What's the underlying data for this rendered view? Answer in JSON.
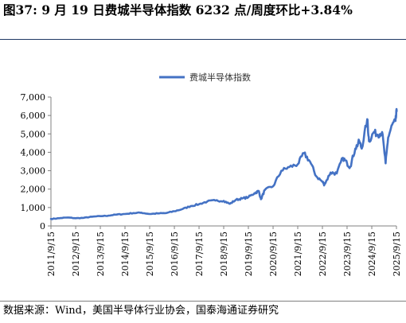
{
  "figure": {
    "title": "图37:  9 月 19 日费城半导体指数 6232 点/周度环比+3.84%",
    "source": "数据来源：Wind，美国半导体行业协会，国泰海通证券研究"
  },
  "colors": {
    "line": "#4472c4",
    "rule": "#1f3864",
    "axis": "#808080"
  },
  "chart_data": {
    "type": "line",
    "series": [
      {
        "name": "费城半导体指数",
        "x": [
          "2011/9/15",
          "2012/1/15",
          "2012/5/15",
          "2012/9/15",
          "2013/1/15",
          "2013/5/15",
          "2013/9/15",
          "2014/1/15",
          "2014/5/15",
          "2014/9/15",
          "2015/1/15",
          "2015/5/15",
          "2015/9/15",
          "2016/1/15",
          "2016/5/15",
          "2016/9/15",
          "2017/1/15",
          "2017/5/15",
          "2017/9/15",
          "2018/1/15",
          "2018/5/15",
          "2018/9/15",
          "2018/12/15",
          "2019/3/15",
          "2019/6/15",
          "2019/9/15",
          "2019/12/15",
          "2020/2/15",
          "2020/3/20",
          "2020/5/15",
          "2020/9/15",
          "2021/1/15",
          "2021/5/15",
          "2021/9/15",
          "2021/12/15",
          "2022/3/15",
          "2022/6/15",
          "2022/9/15",
          "2022/10/15",
          "2023/1/15",
          "2023/4/15",
          "2023/7/15",
          "2023/9/15",
          "2023/10/30",
          "2024/1/15",
          "2024/3/15",
          "2024/4/19",
          "2024/7/10",
          "2024/8/5",
          "2024/10/15",
          "2024/12/15",
          "2025/2/15",
          "2025/4/8",
          "2025/5/15",
          "2025/7/15",
          "2025/9/1",
          "2025/9/19"
        ],
        "values": [
          380,
          420,
          460,
          420,
          440,
          500,
          530,
          560,
          620,
          650,
          700,
          720,
          650,
          680,
          700,
          800,
          920,
          1080,
          1180,
          1330,
          1380,
          1360,
          1200,
          1420,
          1490,
          1560,
          1780,
          1900,
          1450,
          1950,
          2150,
          3000,
          3200,
          3350,
          3950,
          3500,
          2700,
          2400,
          2250,
          2900,
          2850,
          3700,
          3400,
          3200,
          4200,
          4600,
          4200,
          5800,
          4600,
          5100,
          4950,
          5100,
          3400,
          4800,
          5500,
          5700,
          6232
        ]
      }
    ],
    "xticks": [
      "2011/9/15",
      "2012/9/15",
      "2013/9/15",
      "2014/9/15",
      "2015/9/15",
      "2016/9/15",
      "2017/9/15",
      "2018/9/15",
      "2019/9/15",
      "2020/9/15",
      "2021/9/15",
      "2022/9/15",
      "2023/9/15",
      "2024/9/15",
      "2025/9/15"
    ],
    "yticks": [
      "0",
      "1,000",
      "2,000",
      "3,000",
      "4,000",
      "5,000",
      "6,000",
      "7,000"
    ],
    "ylim": [
      0,
      7000
    ],
    "xlim": [
      "2011/9/15",
      "2025/9/15"
    ],
    "grid": false,
    "legend": "top-center"
  }
}
